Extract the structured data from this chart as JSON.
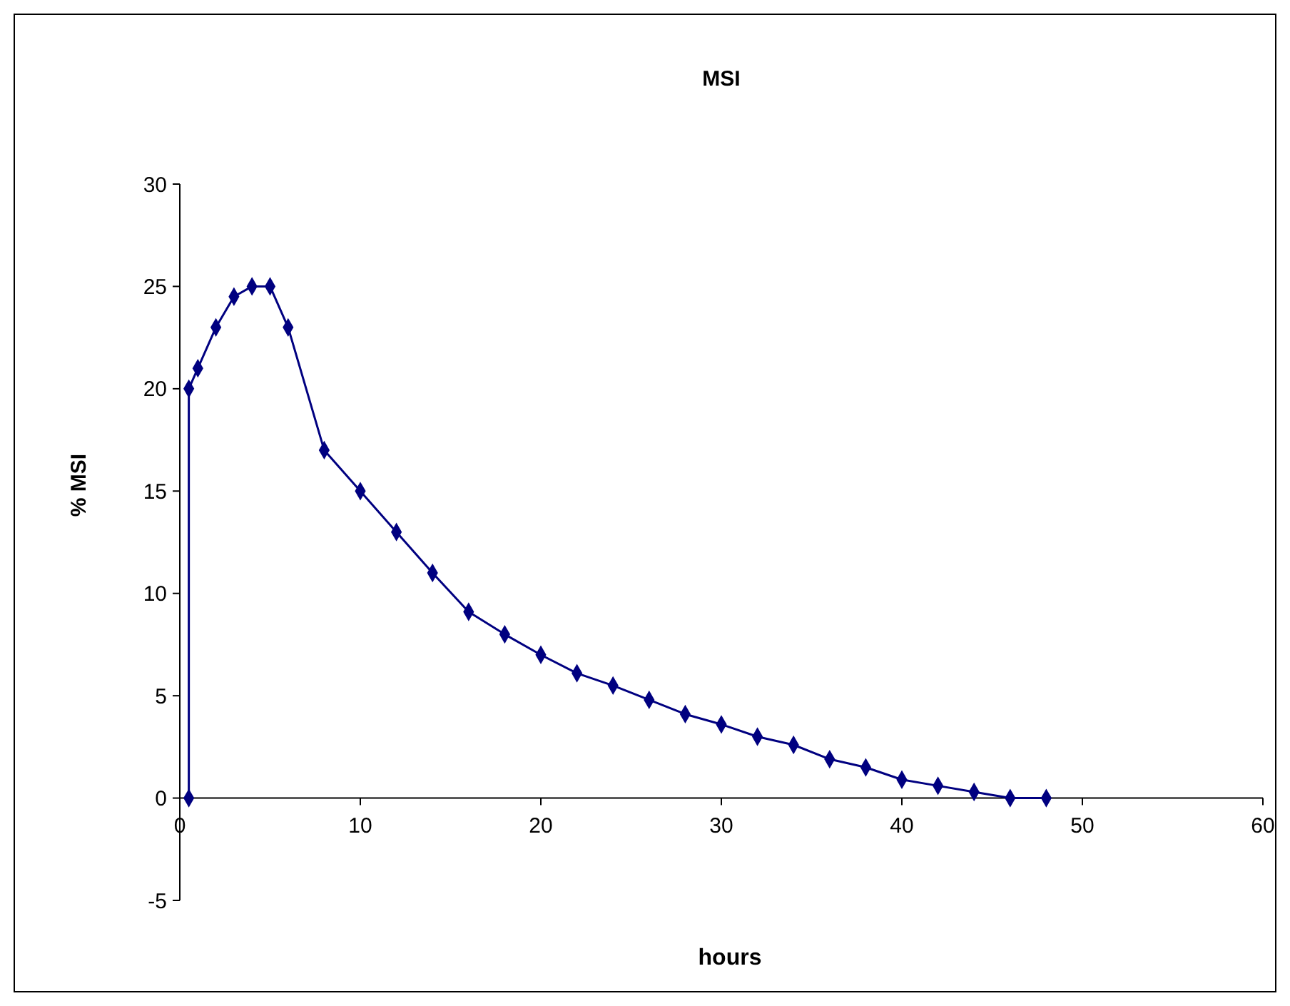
{
  "chart_data": {
    "type": "line",
    "title": "MSI",
    "xlabel": "hours",
    "ylabel": "% MSI",
    "x": [
      0.5,
      0.5,
      1,
      2,
      3,
      4,
      5,
      6,
      8,
      10,
      12,
      14,
      16,
      18,
      20,
      22,
      24,
      26,
      28,
      30,
      32,
      34,
      36,
      38,
      40,
      42,
      44,
      46,
      48
    ],
    "series": [
      {
        "color": "#000080",
        "values": [
          0,
          20,
          21,
          23,
          24.5,
          25,
          25,
          23,
          17,
          15,
          13,
          11,
          9.1,
          8,
          7,
          6.1,
          5.5,
          4.8,
          4.1,
          3.6,
          3,
          2.6,
          1.9,
          1.5,
          0.9,
          0.6,
          0.3,
          0,
          0
        ]
      }
    ],
    "xlim": [
      0,
      60
    ],
    "xticks": [
      0,
      10,
      20,
      30,
      40,
      50,
      60
    ],
    "ylim": [
      -5,
      30
    ],
    "yticks": [
      -5,
      0,
      5,
      10,
      15,
      20,
      25,
      30
    ],
    "marker": "diamond",
    "line_style": "solid",
    "grid": false
  }
}
